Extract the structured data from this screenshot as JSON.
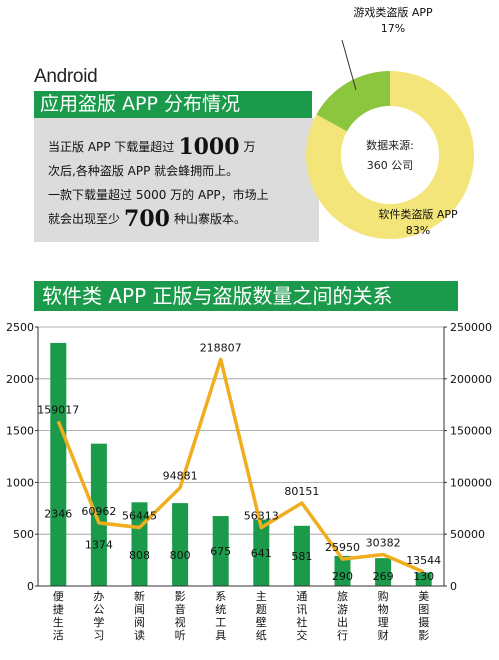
{
  "header": {
    "brand": "Android",
    "title": "应用盗版 APP 分布情况"
  },
  "info": {
    "line1_pre": "当正版 APP 下载量超过",
    "line1_num": "1000",
    "line1_post": "万",
    "line2": "次后,各种盗版 APP 就会蜂拥而上。",
    "line3": "一款下载量超过 5000 万的 APP，市场上",
    "line4_pre": "就会出现至少",
    "line4_num": "700",
    "line4_post": "种山寨版本。"
  },
  "donut": {
    "center_line1": "数据来源:",
    "center_line2": "360 公司",
    "game_label": "游戏类盗版 APP",
    "game_pct": "17%",
    "software_label": "软件类盗版 APP",
    "software_pct": "83%",
    "colors": {
      "game": "#8cc63f",
      "software": "#f3e57a"
    }
  },
  "section": {
    "title": "软件类 APP 正版与盗版数量之间的关系"
  },
  "chart_data": {
    "type": "bar",
    "categories": [
      "便捷生活",
      "办公学习",
      "新闻阅读",
      "影音视听",
      "系统工具",
      "主题壁纸",
      "通讯社交",
      "旅游出行",
      "购物理财",
      "美图摄影"
    ],
    "series": [
      {
        "values": [
          2346,
          1374,
          808,
          800,
          675,
          641,
          581,
          290,
          269,
          130
        ],
        "axis": "left",
        "kind": "bar",
        "color": "#1a9a4a"
      },
      {
        "values": [
          159017,
          60962,
          56445,
          94881,
          218807,
          56313,
          80151,
          25950,
          30382,
          13544
        ],
        "axis": "right",
        "kind": "line",
        "color": "#f0ad1e"
      }
    ],
    "ylim_left": [
      0,
      2500
    ],
    "ylim_right": [
      0,
      250000
    ],
    "yticks_left": [
      "0",
      "500",
      "1000",
      "1500",
      "2000",
      "2500"
    ],
    "yticks_right": [
      "0",
      "50000",
      "100000",
      "150000",
      "200000",
      "250000"
    ]
  }
}
